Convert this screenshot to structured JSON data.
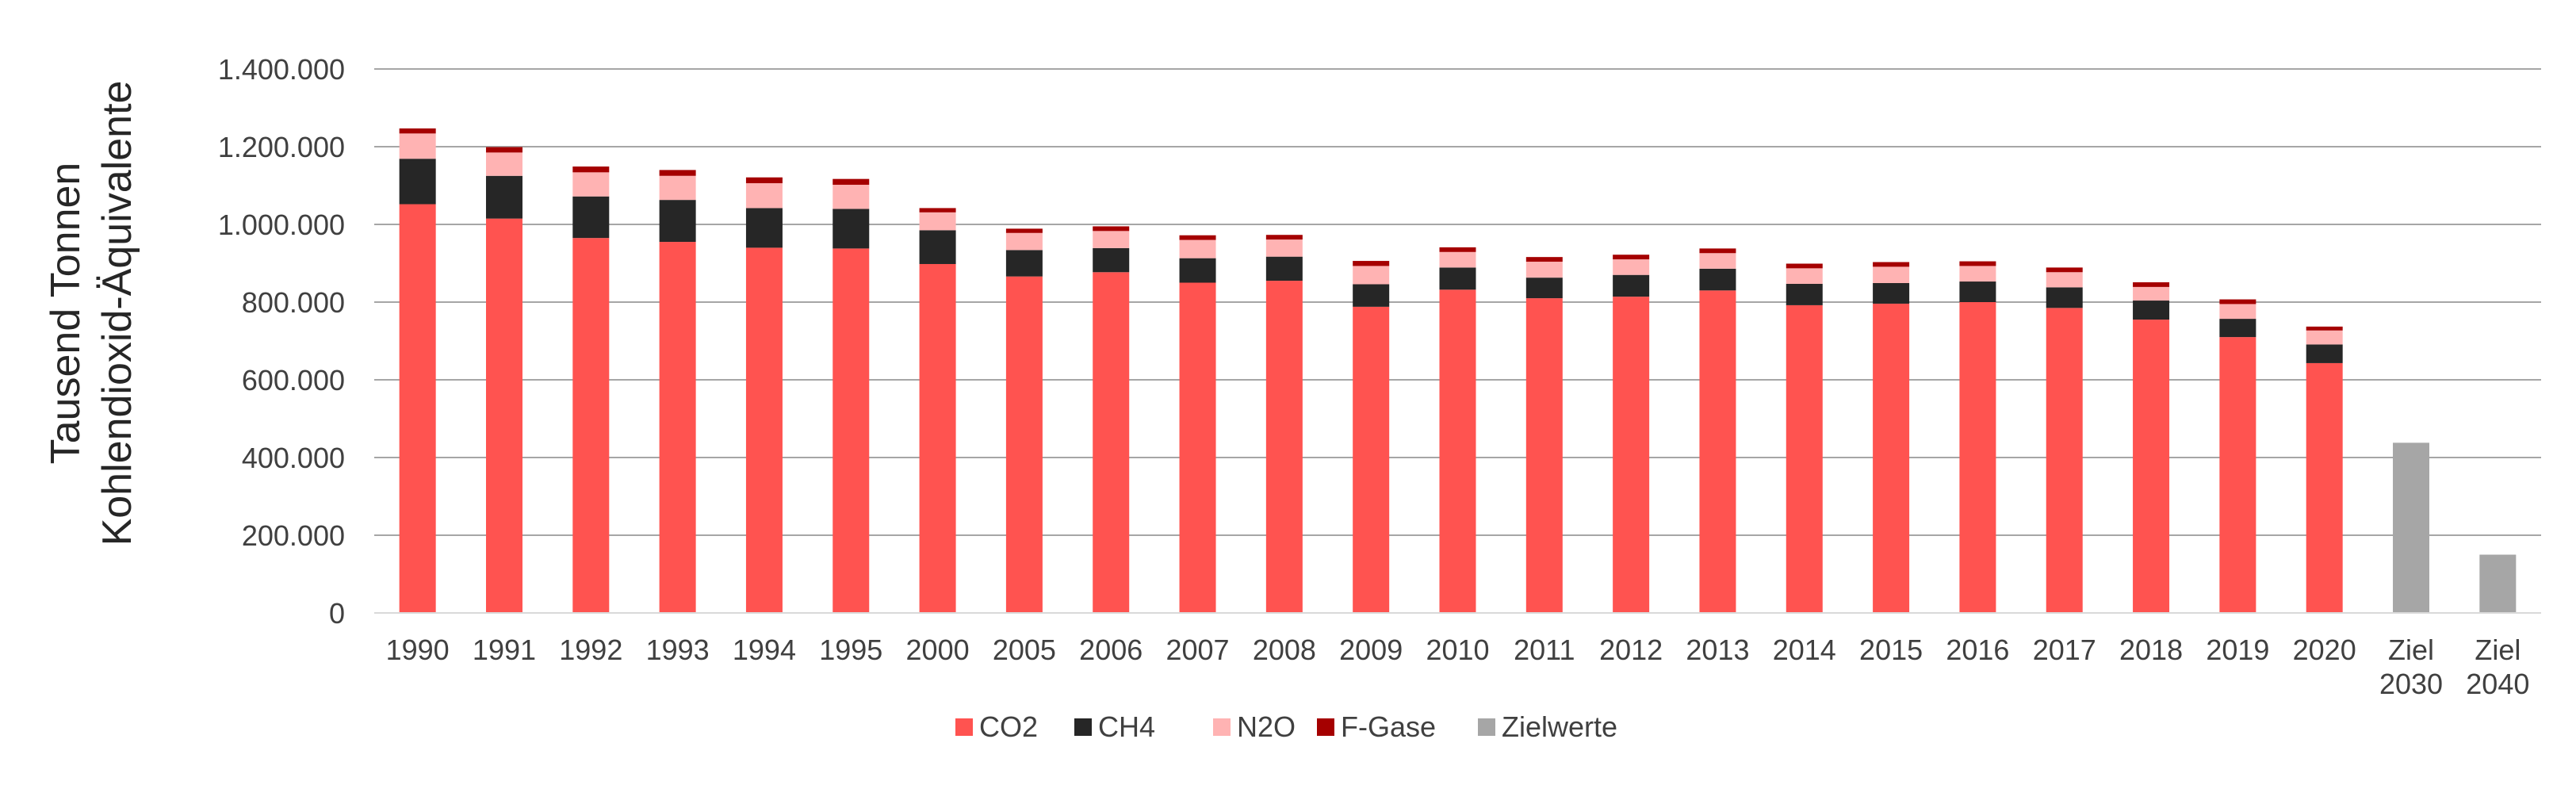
{
  "chart_data": {
    "type": "bar",
    "stacked": true,
    "ylabel_lines": [
      "Tausend Tonnen",
      "Kohlendioxid-Äquivalente"
    ],
    "ylim": [
      0,
      1400000
    ],
    "yticks": [
      0,
      200000,
      400000,
      600000,
      800000,
      1000000,
      1200000,
      1400000
    ],
    "ytick_labels": [
      "0",
      "200.000",
      "400.000",
      "600.000",
      "800.000",
      "1.000.000",
      "1.200.000",
      "1.400.000"
    ],
    "grid": true,
    "legend_position": "bottom-center",
    "categories": [
      [
        "1990"
      ],
      [
        "1991"
      ],
      [
        "1992"
      ],
      [
        "1993"
      ],
      [
        "1994"
      ],
      [
        "1995"
      ],
      [
        "2000"
      ],
      [
        "2005"
      ],
      [
        "2006"
      ],
      [
        "2007"
      ],
      [
        "2008"
      ],
      [
        "2009"
      ],
      [
        "2010"
      ],
      [
        "2011"
      ],
      [
        "2012"
      ],
      [
        "2013"
      ],
      [
        "2014"
      ],
      [
        "2015"
      ],
      [
        "2016"
      ],
      [
        "2017"
      ],
      [
        "2018"
      ],
      [
        "2019"
      ],
      [
        "2020"
      ],
      [
        "Ziel",
        "2030"
      ],
      [
        "Ziel",
        "2040"
      ]
    ],
    "series": [
      {
        "name": "CO2",
        "color": "#ff5350",
        "values": [
          1052000,
          1015000,
          965000,
          955000,
          940000,
          938000,
          898000,
          866000,
          877000,
          850000,
          855000,
          788000,
          832000,
          810000,
          814000,
          830000,
          792000,
          796000,
          800000,
          785000,
          755000,
          710000,
          643000,
          null,
          null
        ]
      },
      {
        "name": "CH4",
        "color": "#262626",
        "values": [
          117000,
          110000,
          107000,
          108000,
          102000,
          102000,
          87000,
          68000,
          62000,
          63000,
          62000,
          58000,
          57000,
          53000,
          56000,
          56000,
          55000,
          53000,
          53000,
          53000,
          49000,
          47000,
          48000,
          null,
          null
        ]
      },
      {
        "name": "N2O",
        "color": "#ffb3b3",
        "values": [
          65000,
          60000,
          62000,
          62000,
          64000,
          62000,
          46000,
          44000,
          44000,
          47000,
          44000,
          47000,
          40000,
          41000,
          40000,
          40000,
          40000,
          42000,
          40000,
          39000,
          35000,
          38000,
          36000,
          null,
          null
        ]
      },
      {
        "name": "F-Gase",
        "color": "#a50000",
        "values": [
          13000,
          14000,
          15000,
          15000,
          15000,
          15000,
          11000,
          11000,
          12000,
          12000,
          12000,
          13000,
          12000,
          12000,
          12000,
          12000,
          12000,
          12000,
          12000,
          12000,
          12000,
          12000,
          10000,
          null,
          null
        ]
      },
      {
        "name": "Zielwerte",
        "color": "#a6a6a6",
        "values": [
          null,
          null,
          null,
          null,
          null,
          null,
          null,
          null,
          null,
          null,
          null,
          null,
          null,
          null,
          null,
          null,
          null,
          null,
          null,
          null,
          null,
          null,
          null,
          438000,
          150000
        ]
      }
    ]
  }
}
